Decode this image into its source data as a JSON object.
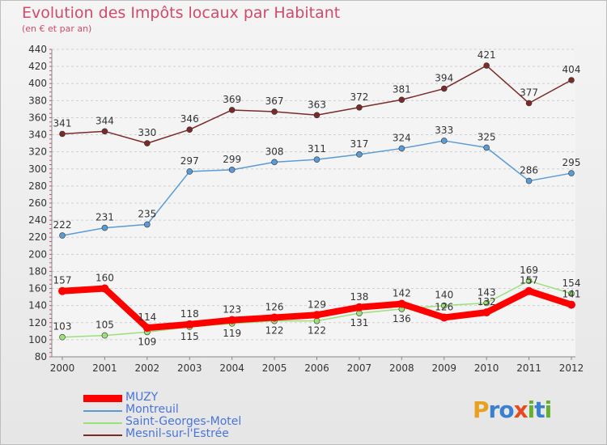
{
  "title": "Evolution des Impôts locaux par Habitant",
  "subtitle": "(en € et par an)",
  "logo": "Proxiti",
  "chart_data": {
    "type": "line",
    "categories": [
      "2000",
      "2001",
      "2002",
      "2003",
      "2004",
      "2005",
      "2006",
      "2007",
      "2008",
      "2009",
      "2010",
      "2011",
      "2012"
    ],
    "ylim": [
      80,
      440
    ],
    "yticks": [
      80,
      100,
      120,
      140,
      160,
      180,
      200,
      220,
      240,
      260,
      280,
      300,
      320,
      340,
      360,
      380,
      400,
      420,
      440
    ],
    "grid": true,
    "legend_position": "bottom-left",
    "series": [
      {
        "name": "MUZY",
        "color": "#ff0000",
        "values": [
          157,
          160,
          114,
          118,
          123,
          126,
          129,
          138,
          142,
          126,
          132,
          157,
          141
        ],
        "labels": [
          "157",
          "160",
          "114",
          "118",
          "123",
          "126",
          "129",
          "138",
          "142",
          "126",
          "132",
          "157",
          "141"
        ]
      },
      {
        "name": "Montreuil",
        "color": "#5b9bd5",
        "values": [
          222,
          231,
          235,
          297,
          299,
          308,
          311,
          317,
          324,
          333,
          325,
          286,
          295
        ],
        "labels": [
          "222",
          "231",
          "235",
          "297",
          "299",
          "308",
          "311",
          "317",
          "324",
          "333",
          "325",
          "286",
          "295"
        ]
      },
      {
        "name": "Saint-Georges-Motel",
        "color": "#9be07a",
        "values": [
          103,
          105,
          109,
          115,
          119,
          122,
          122,
          131,
          136,
          140,
          143,
          169,
          154
        ],
        "labels": [
          "103",
          "105",
          "109",
          "115",
          "119",
          "122",
          "122",
          "131",
          "136",
          "140",
          "143",
          "169",
          "154"
        ]
      },
      {
        "name": "Mesnil-sur-l'Estrée",
        "color": "#7b2a2a",
        "values": [
          341,
          344,
          330,
          346,
          369,
          367,
          363,
          372,
          381,
          394,
          421,
          377,
          404
        ],
        "labels": [
          "341",
          "344",
          "330",
          "346",
          "369",
          "367",
          "363",
          "372",
          "381",
          "394",
          "421",
          "377",
          "404"
        ]
      }
    ]
  }
}
